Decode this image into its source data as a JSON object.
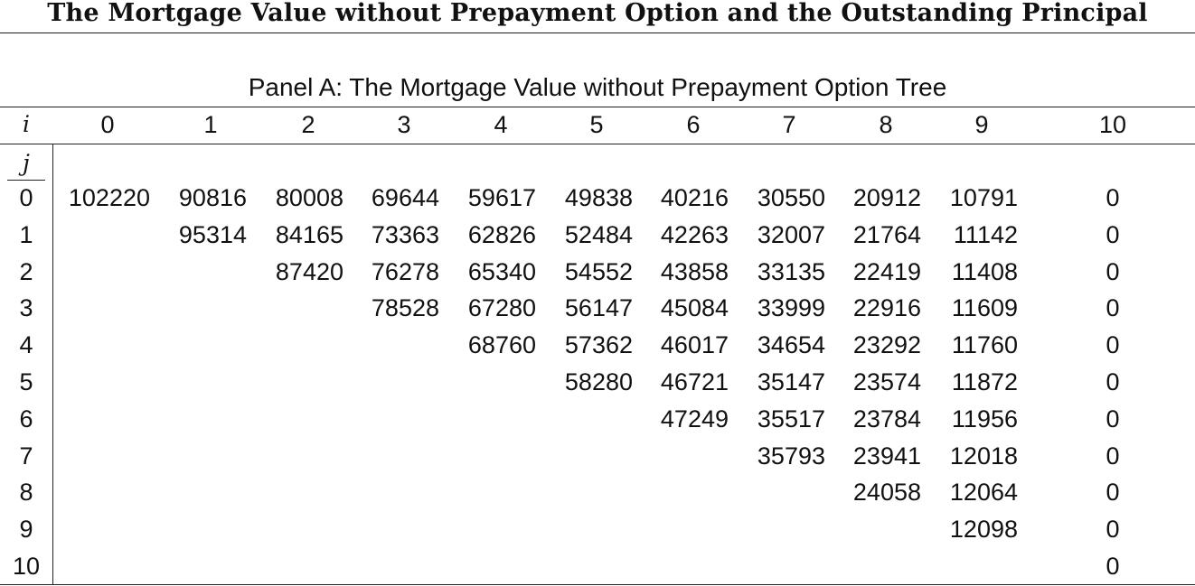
{
  "title": "The Mortgage Value without Prepayment Option and the Outstanding Principal",
  "panel": {
    "title": "Panel A: The Mortgage Value without Prepayment Option Tree",
    "row_header": "i",
    "col_header": "j",
    "columns": [
      "0",
      "1",
      "2",
      "3",
      "4",
      "5",
      "6",
      "7",
      "8",
      "9",
      "10"
    ],
    "rows": [
      {
        "j": "0",
        "values": [
          "102220",
          "90816",
          "80008",
          "69644",
          "59617",
          "49838",
          "40216",
          "30550",
          "20912",
          "10791",
          "0"
        ]
      },
      {
        "j": "1",
        "values": [
          "",
          "95314",
          "84165",
          "73363",
          "62826",
          "52484",
          "42263",
          "32007",
          "21764",
          "11142",
          "0"
        ]
      },
      {
        "j": "2",
        "values": [
          "",
          "",
          "87420",
          "76278",
          "65340",
          "54552",
          "43858",
          "33135",
          "22419",
          "11408",
          "0"
        ]
      },
      {
        "j": "3",
        "values": [
          "",
          "",
          "",
          "78528",
          "67280",
          "56147",
          "45084",
          "33999",
          "22916",
          "11609",
          "0"
        ]
      },
      {
        "j": "4",
        "values": [
          "",
          "",
          "",
          "",
          "68760",
          "57362",
          "46017",
          "34654",
          "23292",
          "11760",
          "0"
        ]
      },
      {
        "j": "5",
        "values": [
          "",
          "",
          "",
          "",
          "",
          "58280",
          "46721",
          "35147",
          "23574",
          "11872",
          "0"
        ]
      },
      {
        "j": "6",
        "values": [
          "",
          "",
          "",
          "",
          "",
          "",
          "47249",
          "35517",
          "23784",
          "11956",
          "0"
        ]
      },
      {
        "j": "7",
        "values": [
          "",
          "",
          "",
          "",
          "",
          "",
          "",
          "35793",
          "23941",
          "12018",
          "0"
        ]
      },
      {
        "j": "8",
        "values": [
          "",
          "",
          "",
          "",
          "",
          "",
          "",
          "",
          "24058",
          "12064",
          "0"
        ]
      },
      {
        "j": "9",
        "values": [
          "",
          "",
          "",
          "",
          "",
          "",
          "",
          "",
          "",
          "12098",
          "0"
        ]
      },
      {
        "j": "10",
        "values": [
          "",
          "",
          "",
          "",
          "",
          "",
          "",
          "",
          "",
          "",
          "0"
        ]
      }
    ]
  }
}
